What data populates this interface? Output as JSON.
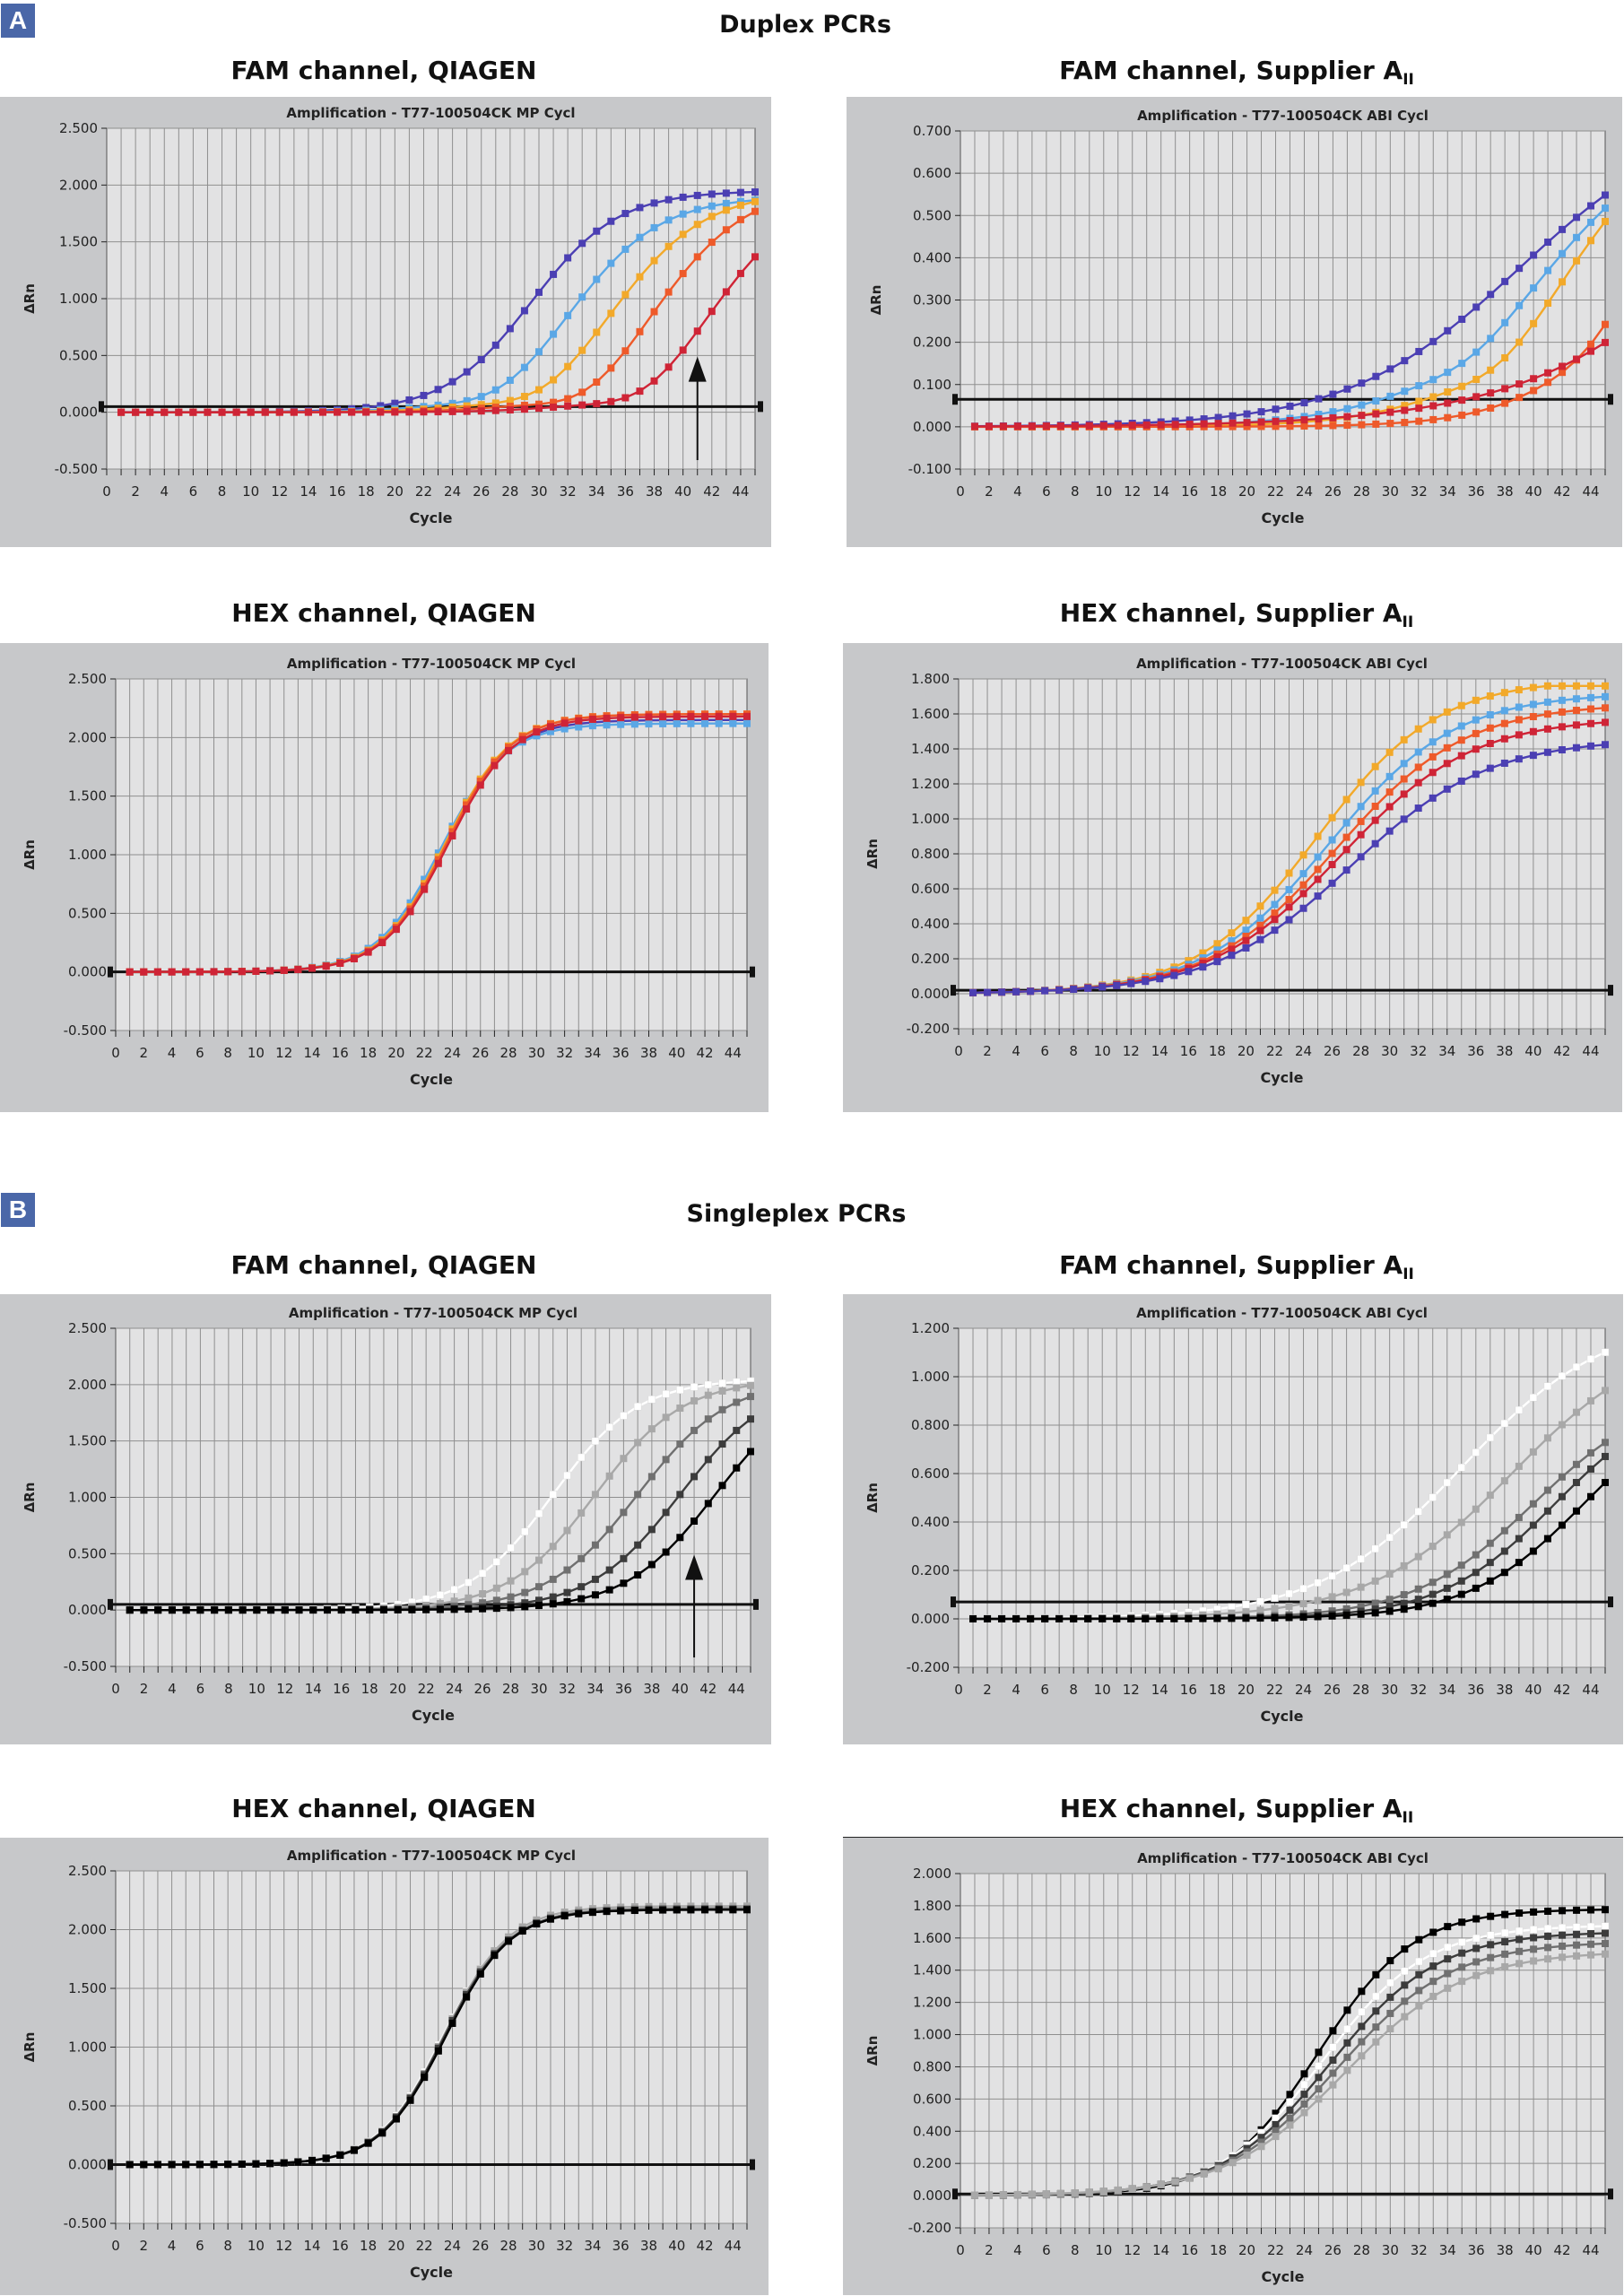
{
  "figure": {
    "sections": [
      {
        "label": "A",
        "title": "Duplex PCRs"
      },
      {
        "label": "B",
        "title": "Singleplex PCRs"
      }
    ]
  },
  "colors": {
    "panel_label_bg": "#4a67a8",
    "chart_bg": "#c7c8ca",
    "plot_bg": "#e2e2e3",
    "grid": "#8f8f8f"
  },
  "chart_data": [
    {
      "id": "a-fam-qiagen",
      "type": "line",
      "section": "A",
      "heading": "FAM channel, QIAGEN",
      "heading_sub": "",
      "title": "Amplification - T77-100504CK MP Cycl",
      "xlabel": "Cycle",
      "ylabel": "ΔRn",
      "xlim": [
        0,
        45
      ],
      "ylim": [
        -0.5,
        2.5
      ],
      "ystep": 0.5,
      "yticks": [
        "-0.500",
        "0.000",
        "0.500",
        "1.000",
        "1.500",
        "2.000",
        "2.500"
      ],
      "threshold": 0.05,
      "arrow_at_cycle": 41,
      "series": [
        {
          "name": "dark blue",
          "color": "#4b3fb3",
          "baseline": 0.0,
          "dip": 0.0,
          "ct": 29.5,
          "plateau": 1.95,
          "slope": 3.0
        },
        {
          "name": "light blue",
          "color": "#5aa7e6",
          "baseline": 0.0,
          "dip": -0.08,
          "ct": 32.5,
          "plateau": 1.9,
          "slope": 3.1
        },
        {
          "name": "orange",
          "color": "#f2a92a",
          "baseline": 0.0,
          "dip": -0.1,
          "ct": 35.5,
          "plateau": 1.95,
          "slope": 3.2
        },
        {
          "name": "red orange",
          "color": "#ee5a2a",
          "baseline": 0.0,
          "dip": -0.13,
          "ct": 38.5,
          "plateau": 2.0,
          "slope": 3.2
        },
        {
          "name": "crimson",
          "color": "#cf2436",
          "baseline": 0.0,
          "dip": -0.12,
          "ct": 42.5,
          "plateau": 2.0,
          "slope": 3.2
        }
      ]
    },
    {
      "id": "a-fam-supplier",
      "type": "line",
      "section": "A",
      "heading": "FAM channel, Supplier A",
      "heading_sub": "II",
      "title": "Amplification - T77-100504CK ABI Cycl",
      "xlabel": "Cycle",
      "ylabel": "ΔRn",
      "xlim": [
        0,
        45
      ],
      "ylim": [
        -0.1,
        0.7
      ],
      "ystep": 0.1,
      "yticks": [
        "-0.100",
        "0.000",
        "0.100",
        "0.200",
        "0.300",
        "0.400",
        "0.500",
        "0.600",
        "0.700"
      ],
      "threshold": 0.065,
      "series": [
        {
          "name": "dark blue",
          "color": "#4b3fb3",
          "baseline": 0.0,
          "dip": 0.0,
          "ct": 39.0,
          "plateau": 0.75,
          "slope": 6.0
        },
        {
          "name": "light blue",
          "color": "#5aa7e6",
          "baseline": 0.0,
          "dip": -0.025,
          "ct": 41.0,
          "plateau": 0.75,
          "slope": 5.0
        },
        {
          "name": "orange",
          "color": "#f2a92a",
          "baseline": 0.0,
          "dip": -0.035,
          "ct": 43.0,
          "plateau": 0.8,
          "slope": 4.5
        },
        {
          "name": "red orange",
          "color": "#ee5a2a",
          "baseline": 0.0,
          "dip": -0.025,
          "ct": 50.0,
          "plateau": 1.2,
          "slope": 4.0
        },
        {
          "name": "crimson",
          "color": "#cf2436",
          "baseline": 0.0,
          "dip": 0.0,
          "ct": 60.0,
          "plateau": 1.5,
          "slope": 8.0
        }
      ]
    },
    {
      "id": "a-hex-qiagen",
      "type": "line",
      "section": "A",
      "heading": "HEX channel, QIAGEN",
      "heading_sub": "",
      "title": "Amplification - T77-100504CK MP Cycl",
      "xlabel": "Cycle",
      "ylabel": "ΔRn",
      "xlim": [
        0,
        45
      ],
      "ylim": [
        -0.5,
        2.5
      ],
      "ystep": 0.5,
      "yticks": [
        "-0.500",
        "0.000",
        "0.500",
        "1.000",
        "1.500",
        "2.000",
        "2.500"
      ],
      "threshold": 0.0,
      "series": [
        {
          "name": "dark blue",
          "color": "#4b3fb3",
          "baseline": 0.0,
          "dip": 0.0,
          "ct": 23.4,
          "plateau": 2.15,
          "slope": 2.3
        },
        {
          "name": "light blue",
          "color": "#5aa7e6",
          "baseline": 0.0,
          "dip": 0.0,
          "ct": 23.2,
          "plateau": 2.12,
          "slope": 2.3
        },
        {
          "name": "orange",
          "color": "#f2a92a",
          "baseline": 0.0,
          "dip": 0.0,
          "ct": 23.5,
          "plateau": 2.2,
          "slope": 2.3
        },
        {
          "name": "red orange",
          "color": "#ee5a2a",
          "baseline": 0.0,
          "dip": 0.0,
          "ct": 23.6,
          "plateau": 2.2,
          "slope": 2.3
        },
        {
          "name": "crimson",
          "color": "#cf2436",
          "baseline": 0.0,
          "dip": 0.0,
          "ct": 23.7,
          "plateau": 2.18,
          "slope": 2.3
        }
      ]
    },
    {
      "id": "a-hex-supplier",
      "type": "line",
      "section": "A",
      "heading": "HEX channel, Supplier A",
      "heading_sub": "II",
      "title": "Amplification - T77-100504CK ABI Cycl",
      "xlabel": "Cycle",
      "ylabel": "ΔRn",
      "xlim": [
        0,
        45
      ],
      "ylim": [
        -0.2,
        1.8
      ],
      "ystep": 0.2,
      "yticks": [
        "-0.200",
        "0.000",
        "0.200",
        "0.400",
        "0.600",
        "0.800",
        "1.000",
        "1.200",
        "1.400",
        "1.600",
        "1.800"
      ],
      "threshold": 0.02,
      "series": [
        {
          "name": "orange",
          "color": "#f2a92a",
          "baseline": 0.0,
          "dip": 0.0,
          "ct": 25.0,
          "plateau": 1.8,
          "slope": 4.2
        },
        {
          "name": "light blue",
          "color": "#5aa7e6",
          "baseline": 0.0,
          "dip": 0.0,
          "ct": 25.8,
          "plateau": 1.72,
          "slope": 4.4
        },
        {
          "name": "red orange",
          "color": "#ee5a2a",
          "baseline": 0.0,
          "dip": 0.0,
          "ct": 26.3,
          "plateau": 1.66,
          "slope": 4.5
        },
        {
          "name": "crimson",
          "color": "#cf2436",
          "baseline": 0.0,
          "dip": 0.0,
          "ct": 26.6,
          "plateau": 1.58,
          "slope": 4.6
        },
        {
          "name": "dark blue",
          "color": "#4b3fb3",
          "baseline": 0.0,
          "dip": 0.0,
          "ct": 27.3,
          "plateau": 1.46,
          "slope": 4.8
        }
      ]
    },
    {
      "id": "b-fam-qiagen",
      "type": "line",
      "section": "B",
      "heading": "FAM channel, QIAGEN",
      "heading_sub": "",
      "title": "Amplification - T77-100504CK MP Cycl",
      "xlabel": "Cycle",
      "ylabel": "ΔRn",
      "xlim": [
        0,
        45
      ],
      "ylim": [
        -0.5,
        2.5
      ],
      "ystep": 0.5,
      "yticks": [
        "-0.500",
        "0.000",
        "0.500",
        "1.000",
        "1.500",
        "2.000",
        "2.500"
      ],
      "threshold": 0.05,
      "arrow_at_cycle": 41,
      "series": [
        {
          "name": "white",
          "color": "#ffffff",
          "baseline": 0.0,
          "dip": 0.0,
          "ct": 31.0,
          "plateau": 2.05,
          "slope": 3.0
        },
        {
          "name": "light gray",
          "color": "#a8a8a8",
          "baseline": 0.0,
          "dip": 0.0,
          "ct": 34.0,
          "plateau": 2.05,
          "slope": 3.1
        },
        {
          "name": "gray",
          "color": "#707070",
          "baseline": 0.0,
          "dip": 0.0,
          "ct": 37.0,
          "plateau": 2.05,
          "slope": 3.2
        },
        {
          "name": "dark gray",
          "color": "#3c3c3c",
          "baseline": 0.0,
          "dip": 0.0,
          "ct": 40.0,
          "plateau": 2.05,
          "slope": 3.2
        },
        {
          "name": "black",
          "color": "#000000",
          "baseline": 0.0,
          "dip": 0.0,
          "ct": 42.5,
          "plateau": 2.05,
          "slope": 3.2
        }
      ]
    },
    {
      "id": "b-fam-supplier",
      "type": "line",
      "section": "B",
      "heading": "FAM channel, Supplier A",
      "heading_sub": "II",
      "title": "Amplification - T77-100504CK ABI Cycl",
      "xlabel": "Cycle",
      "ylabel": "ΔRn",
      "xlim": [
        0,
        45
      ],
      "ylim": [
        -0.2,
        1.2
      ],
      "ystep": 0.2,
      "yticks": [
        "-0.200",
        "0.000",
        "0.200",
        "0.400",
        "0.600",
        "0.800",
        "1.000",
        "1.200"
      ],
      "threshold": 0.07,
      "series": [
        {
          "name": "white",
          "color": "#ffffff",
          "baseline": 0.0,
          "dip": 0.0,
          "ct": 35.0,
          "plateau": 1.25,
          "slope": 5.0
        },
        {
          "name": "light gray",
          "color": "#a8a8a8",
          "baseline": 0.0,
          "dip": 0.0,
          "ct": 38.5,
          "plateau": 1.2,
          "slope": 5.0
        },
        {
          "name": "gray",
          "color": "#707070",
          "baseline": 0.0,
          "dip": 0.0,
          "ct": 40.0,
          "plateau": 0.95,
          "slope": 4.2
        },
        {
          "name": "dark gray",
          "color": "#3c3c3c",
          "baseline": 0.0,
          "dip": 0.0,
          "ct": 41.5,
          "plateau": 0.95,
          "slope": 4.0
        },
        {
          "name": "black",
          "color": "#000000",
          "baseline": 0.0,
          "dip": 0.0,
          "ct": 43.5,
          "plateau": 0.95,
          "slope": 4.0
        }
      ]
    },
    {
      "id": "b-hex-qiagen",
      "type": "line",
      "section": "B",
      "heading": "HEX channel, QIAGEN",
      "heading_sub": "",
      "title": "Amplification - T77-100504CK MP Cycl",
      "xlabel": "Cycle",
      "ylabel": "ΔRn",
      "xlim": [
        0,
        45
      ],
      "ylim": [
        -0.5,
        2.5
      ],
      "ystep": 0.5,
      "yticks": [
        "-0.500",
        "0.000",
        "0.500",
        "1.000",
        "1.500",
        "2.000",
        "2.500"
      ],
      "threshold": 0.0,
      "series": [
        {
          "name": "white",
          "color": "#ffffff",
          "baseline": 0.0,
          "dip": 0.0,
          "ct": 23.3,
          "plateau": 2.18,
          "slope": 2.3
        },
        {
          "name": "light gray",
          "color": "#a8a8a8",
          "baseline": 0.0,
          "dip": 0.0,
          "ct": 23.4,
          "plateau": 2.2,
          "slope": 2.3
        },
        {
          "name": "gray",
          "color": "#707070",
          "baseline": 0.0,
          "dip": 0.0,
          "ct": 23.5,
          "plateau": 2.18,
          "slope": 2.3
        },
        {
          "name": "dark gray",
          "color": "#3c3c3c",
          "baseline": 0.0,
          "dip": 0.0,
          "ct": 23.4,
          "plateau": 2.17,
          "slope": 2.3
        },
        {
          "name": "black",
          "color": "#000000",
          "baseline": 0.0,
          "dip": 0.0,
          "ct": 23.5,
          "plateau": 2.17,
          "slope": 2.3
        }
      ]
    },
    {
      "id": "b-hex-supplier",
      "type": "line",
      "section": "B",
      "heading": "HEX channel, Supplier A",
      "heading_sub": "II",
      "title": "Amplification - T77-100504CK ABI Cycl",
      "xlabel": "Cycle",
      "ylabel": "ΔRn",
      "xlim": [
        0,
        45
      ],
      "ylim": [
        -0.2,
        2.0
      ],
      "ystep": 0.2,
      "yticks": [
        "-0.200",
        "0.000",
        "0.200",
        "0.400",
        "0.600",
        "0.800",
        "1.000",
        "1.200",
        "1.400",
        "1.600",
        "1.800",
        "2.000"
      ],
      "threshold": 0.01,
      "series": [
        {
          "name": "black",
          "color": "#000000",
          "baseline": 0.0,
          "dip": 0.0,
          "ct": 25.0,
          "plateau": 1.78,
          "slope": 3.3
        },
        {
          "name": "white",
          "color": "#ffffff",
          "baseline": 0.0,
          "dip": 0.0,
          "ct": 25.3,
          "plateau": 1.68,
          "slope": 3.6
        },
        {
          "name": "dark gray",
          "color": "#3c3c3c",
          "baseline": 0.0,
          "dip": 0.0,
          "ct": 25.8,
          "plateau": 1.64,
          "slope": 3.8
        },
        {
          "name": "gray",
          "color": "#707070",
          "baseline": 0.0,
          "dip": 0.0,
          "ct": 26.3,
          "plateau": 1.58,
          "slope": 4.0
        },
        {
          "name": "light gray",
          "color": "#a8a8a8",
          "baseline": 0.0,
          "dip": 0.0,
          "ct": 26.8,
          "plateau": 1.52,
          "slope": 4.2
        }
      ]
    }
  ]
}
